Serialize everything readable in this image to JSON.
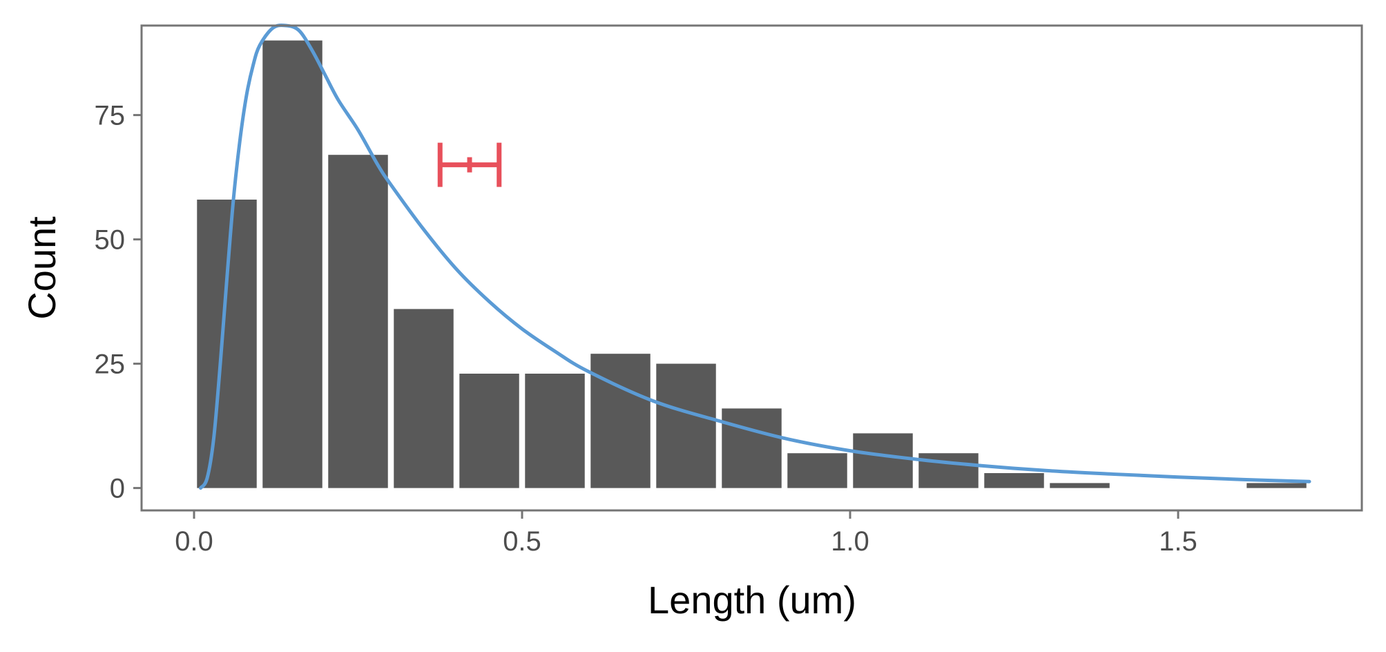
{
  "chart_data": {
    "type": "bar",
    "xlabel": "Length (um)",
    "ylabel": "Count",
    "xlim": [
      -0.08,
      1.78
    ],
    "ylim": [
      -4.5,
      93
    ],
    "x_ticks": [
      {
        "value": 0.0,
        "label": "0.0"
      },
      {
        "value": 0.5,
        "label": "0.5"
      },
      {
        "value": 1.0,
        "label": "1.0"
      },
      {
        "value": 1.5,
        "label": "1.5"
      }
    ],
    "y_ticks": [
      {
        "value": 0,
        "label": "0"
      },
      {
        "value": 25,
        "label": "25"
      },
      {
        "value": 50,
        "label": "50"
      },
      {
        "value": 75,
        "label": "75"
      }
    ],
    "grid": false,
    "bins": [
      {
        "start": 0.0,
        "end": 0.1,
        "count": 58
      },
      {
        "start": 0.1,
        "end": 0.2,
        "count": 90
      },
      {
        "start": 0.2,
        "end": 0.3,
        "count": 67
      },
      {
        "start": 0.3,
        "end": 0.4,
        "count": 36
      },
      {
        "start": 0.4,
        "end": 0.5,
        "count": 23
      },
      {
        "start": 0.5,
        "end": 0.6,
        "count": 23
      },
      {
        "start": 0.6,
        "end": 0.7,
        "count": 27
      },
      {
        "start": 0.7,
        "end": 0.8,
        "count": 25
      },
      {
        "start": 0.8,
        "end": 0.9,
        "count": 16
      },
      {
        "start": 0.9,
        "end": 1.0,
        "count": 7
      },
      {
        "start": 1.0,
        "end": 1.1,
        "count": 11
      },
      {
        "start": 1.1,
        "end": 1.2,
        "count": 7
      },
      {
        "start": 1.2,
        "end": 1.3,
        "count": 3
      },
      {
        "start": 1.3,
        "end": 1.4,
        "count": 1
      },
      {
        "start": 1.4,
        "end": 1.5,
        "count": 0
      },
      {
        "start": 1.5,
        "end": 1.6,
        "count": 0
      },
      {
        "start": 1.6,
        "end": 1.7,
        "count": 1
      }
    ],
    "fit_curve": {
      "color": "#5b9bd5",
      "points": [
        [
          0.01,
          0.0
        ],
        [
          0.02,
          2
        ],
        [
          0.03,
          10
        ],
        [
          0.04,
          25
        ],
        [
          0.05,
          42
        ],
        [
          0.06,
          58
        ],
        [
          0.07,
          70
        ],
        [
          0.08,
          79
        ],
        [
          0.09,
          85
        ],
        [
          0.1,
          89
        ],
        [
          0.12,
          92.5
        ],
        [
          0.14,
          93
        ],
        [
          0.16,
          92
        ],
        [
          0.18,
          88
        ],
        [
          0.2,
          83
        ],
        [
          0.22,
          78
        ],
        [
          0.25,
          72
        ],
        [
          0.28,
          65
        ],
        [
          0.3,
          61
        ],
        [
          0.35,
          52
        ],
        [
          0.4,
          44
        ],
        [
          0.45,
          37.5
        ],
        [
          0.5,
          32
        ],
        [
          0.55,
          27.5
        ],
        [
          0.6,
          23.5
        ],
        [
          0.7,
          17.5
        ],
        [
          0.8,
          13.5
        ],
        [
          0.9,
          10
        ],
        [
          1.0,
          7.5
        ],
        [
          1.1,
          5.8
        ],
        [
          1.2,
          4.5
        ],
        [
          1.3,
          3.5
        ],
        [
          1.4,
          2.8
        ],
        [
          1.5,
          2.2
        ],
        [
          1.6,
          1.7
        ],
        [
          1.7,
          1.3
        ]
      ]
    },
    "error_bar": {
      "color": "#e8505b",
      "x_center": 0.42,
      "x_low": 0.375,
      "x_high": 0.465,
      "y": 65
    },
    "colors": {
      "bar": "#595959",
      "frame": "#757575",
      "tick_text": "#4d4d4d"
    }
  }
}
